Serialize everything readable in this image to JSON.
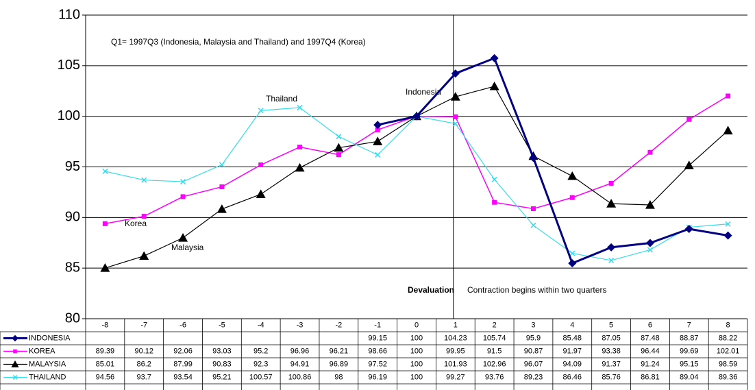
{
  "chart_data": {
    "type": "line",
    "categories": [
      -8,
      -7,
      -6,
      -5,
      -4,
      -3,
      -2,
      -1,
      0,
      1,
      2,
      3,
      4,
      5,
      6,
      7,
      8
    ],
    "ylim": [
      80,
      110
    ],
    "yticks": [
      80,
      85,
      90,
      95,
      100,
      105,
      110
    ],
    "grid": true,
    "annotations": [
      "Q1= 1997Q3 (Indonesia, Malaysia  and Thailand) and 1997Q4 (Korea)",
      "Thailand",
      "Indonesia",
      "Korea",
      "Malaysia",
      "Devaluation",
      "Contraction begins within two quarters"
    ],
    "series": [
      {
        "name": "INDONESIA",
        "color": "#000080",
        "marker": "diamond",
        "values": [
          null,
          null,
          null,
          null,
          null,
          null,
          null,
          99.15,
          100,
          104.23,
          105.74,
          95.9,
          85.48,
          87.05,
          87.48,
          88.87,
          88.22
        ]
      },
      {
        "name": "KOREA",
        "color": "#ff00ff",
        "marker": "square",
        "values": [
          89.39,
          90.12,
          92.06,
          93.03,
          95.2,
          96.96,
          96.21,
          98.66,
          100,
          99.95,
          91.5,
          90.87,
          91.97,
          93.38,
          96.44,
          99.69,
          102.01
        ]
      },
      {
        "name": "MALAYSIA",
        "color": "#000000",
        "marker": "triangle",
        "values": [
          85.01,
          86.2,
          87.99,
          90.83,
          92.3,
          94.91,
          96.89,
          97.52,
          100,
          101.93,
          102.96,
          96.07,
          94.09,
          91.37,
          91.24,
          95.15,
          98.59
        ]
      },
      {
        "name": "THAILAND",
        "color": "#33ddee",
        "marker": "x",
        "values": [
          94.56,
          93.7,
          93.54,
          95.21,
          100.57,
          100.86,
          98,
          96.19,
          100,
          99.27,
          93.76,
          89.23,
          86.46,
          85.76,
          86.81,
          89.04,
          89.36
        ]
      }
    ]
  }
}
